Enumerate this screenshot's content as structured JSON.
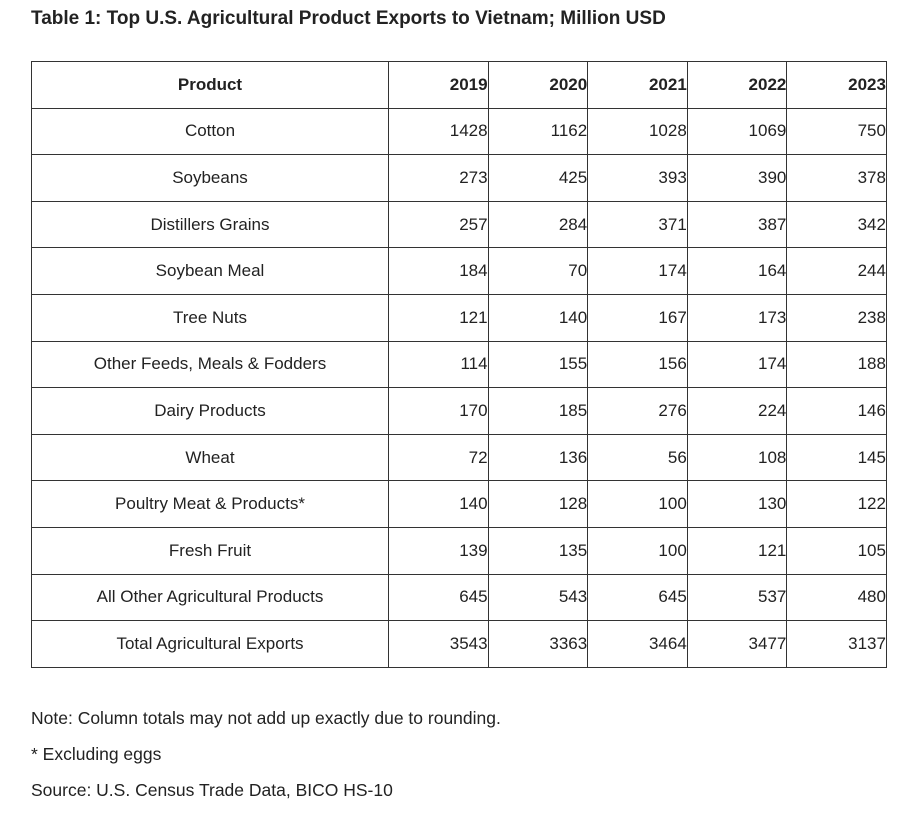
{
  "title": "Table 1: Top U.S. Agricultural Product Exports to Vietnam; Million USD",
  "table": {
    "headers": [
      "Product",
      "2019",
      "2020",
      "2021",
      "2022",
      "2023"
    ],
    "rows": [
      {
        "product": "Cotton",
        "values": [
          "1428",
          "1162",
          "1028",
          "1069",
          "750"
        ]
      },
      {
        "product": "Soybeans",
        "values": [
          "273",
          "425",
          "393",
          "390",
          "378"
        ]
      },
      {
        "product": "Distillers Grains",
        "values": [
          "257",
          "284",
          "371",
          "387",
          "342"
        ]
      },
      {
        "product": "Soybean Meal",
        "values": [
          "184",
          "70",
          "174",
          "164",
          "244"
        ]
      },
      {
        "product": "Tree Nuts",
        "values": [
          "121",
          "140",
          "167",
          "173",
          "238"
        ]
      },
      {
        "product": "Other Feeds, Meals & Fodders",
        "values": [
          "114",
          "155",
          "156",
          "174",
          "188"
        ]
      },
      {
        "product": "Dairy Products",
        "values": [
          "170",
          "185",
          "276",
          "224",
          "146"
        ]
      },
      {
        "product": "Wheat",
        "values": [
          "72",
          "136",
          "56",
          "108",
          "145"
        ]
      },
      {
        "product": "Poultry Meat & Products*",
        "values": [
          "140",
          "128",
          "100",
          "130",
          "122"
        ]
      },
      {
        "product": "Fresh Fruit",
        "values": [
          "139",
          "135",
          "100",
          "121",
          "105"
        ]
      },
      {
        "product": "All Other Agricultural Products",
        "values": [
          "645",
          "543",
          "645",
          "537",
          "480"
        ]
      },
      {
        "product": "Total Agricultural Exports",
        "values": [
          "3543",
          "3363",
          "3464",
          "3477",
          "3137"
        ]
      }
    ]
  },
  "notes": {
    "rounding": "Note: Column totals may not add up exactly due to rounding.",
    "eggs": "* Excluding eggs",
    "source": "Source: U.S. Census Trade Data, BICO HS-10"
  }
}
